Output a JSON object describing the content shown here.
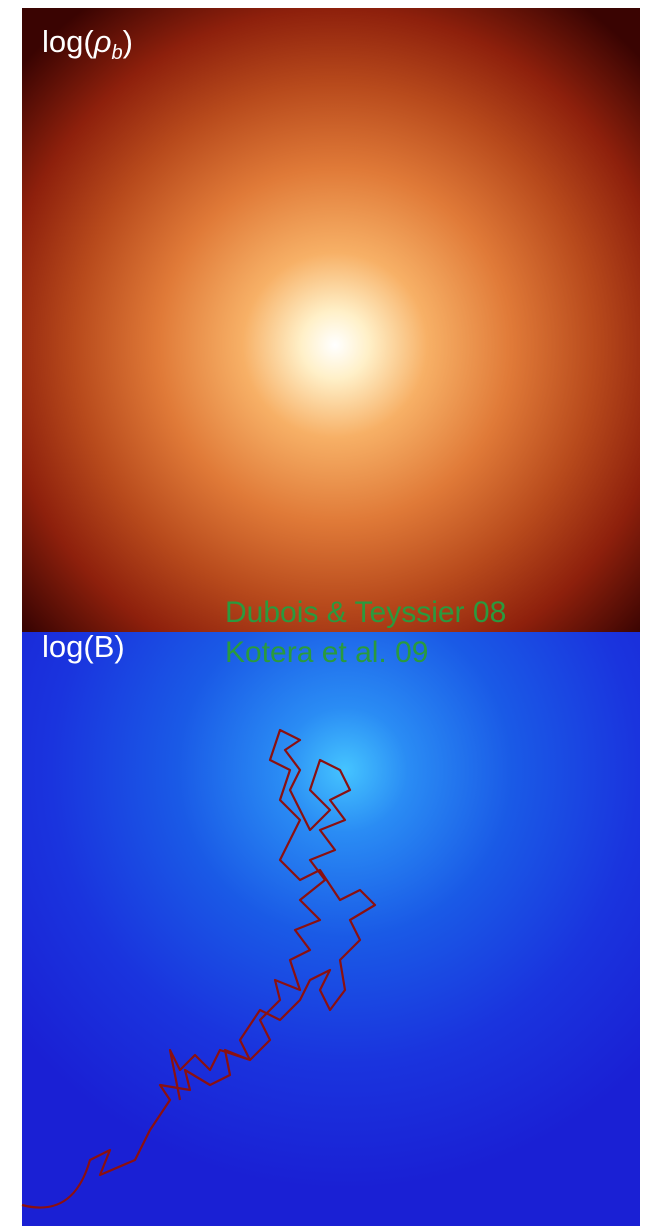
{
  "panels": [
    {
      "label": {
        "prefix": "log(",
        "symbol": "ρ",
        "subscript": "b",
        "suffix": ")"
      }
    },
    {
      "label": "log(B)"
    }
  ],
  "credits": [
    "Dubois & Teyssier 08",
    "Kotera et al. 09"
  ]
}
